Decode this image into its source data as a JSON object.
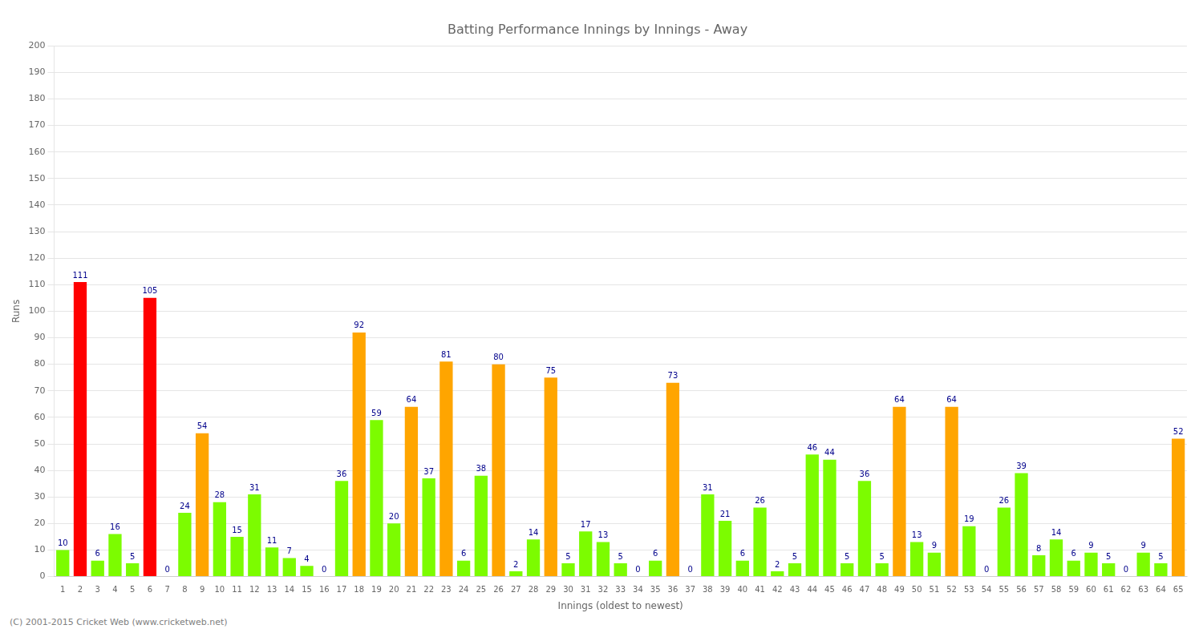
{
  "chart_data": {
    "type": "bar",
    "title": "Batting Performance Innings by Innings - Away",
    "xlabel": "Innings (oldest to newest)",
    "ylabel": "Runs",
    "categories": [
      "1",
      "2",
      "3",
      "4",
      "5",
      "6",
      "7",
      "8",
      "9",
      "10",
      "11",
      "12",
      "13",
      "14",
      "15",
      "16",
      "17",
      "18",
      "19",
      "20",
      "21",
      "22",
      "23",
      "24",
      "25",
      "26",
      "27",
      "28",
      "29",
      "30",
      "31",
      "32",
      "33",
      "34",
      "35",
      "36",
      "37",
      "38",
      "39",
      "40",
      "41",
      "42",
      "43",
      "44",
      "45",
      "46",
      "47",
      "48",
      "49",
      "50",
      "51",
      "52",
      "53",
      "54",
      "55",
      "56",
      "57",
      "58",
      "59",
      "60",
      "61",
      "62",
      "63",
      "64",
      "65"
    ],
    "values": [
      10,
      111,
      6,
      16,
      5,
      105,
      0,
      24,
      54,
      28,
      15,
      31,
      11,
      7,
      4,
      0,
      36,
      92,
      59,
      20,
      64,
      37,
      81,
      6,
      38,
      80,
      2,
      14,
      75,
      5,
      17,
      13,
      5,
      0,
      6,
      73,
      0,
      31,
      21,
      6,
      26,
      2,
      5,
      46,
      44,
      5,
      36,
      5,
      64,
      13,
      9,
      64,
      19,
      0,
      26,
      39,
      8,
      14,
      6,
      9,
      5,
      0,
      9,
      5,
      52
    ],
    "colors": [
      "#7cfc00",
      "#ff0000",
      "#7cfc00",
      "#7cfc00",
      "#7cfc00",
      "#ff0000",
      "#7cfc00",
      "#7cfc00",
      "#ffa500",
      "#7cfc00",
      "#7cfc00",
      "#7cfc00",
      "#7cfc00",
      "#7cfc00",
      "#7cfc00",
      "#7cfc00",
      "#7cfc00",
      "#ffa500",
      "#7cfc00",
      "#7cfc00",
      "#ffa500",
      "#7cfc00",
      "#ffa500",
      "#7cfc00",
      "#7cfc00",
      "#ffa500",
      "#7cfc00",
      "#7cfc00",
      "#ffa500",
      "#7cfc00",
      "#7cfc00",
      "#7cfc00",
      "#7cfc00",
      "#7cfc00",
      "#7cfc00",
      "#ffa500",
      "#7cfc00",
      "#7cfc00",
      "#7cfc00",
      "#7cfc00",
      "#7cfc00",
      "#7cfc00",
      "#7cfc00",
      "#7cfc00",
      "#7cfc00",
      "#7cfc00",
      "#7cfc00",
      "#7cfc00",
      "#ffa500",
      "#7cfc00",
      "#7cfc00",
      "#ffa500",
      "#7cfc00",
      "#7cfc00",
      "#7cfc00",
      "#7cfc00",
      "#7cfc00",
      "#7cfc00",
      "#7cfc00",
      "#7cfc00",
      "#7cfc00",
      "#7cfc00",
      "#7cfc00",
      "#7cfc00",
      "#ffa500"
    ],
    "ylim": [
      0,
      200
    ],
    "yticks": [
      0,
      10,
      20,
      30,
      40,
      50,
      60,
      70,
      80,
      90,
      100,
      110,
      120,
      130,
      140,
      150,
      160,
      170,
      180,
      190,
      200
    ],
    "grid": true,
    "data_labels": true,
    "annotations": [
      "(C) 2001-2015 Cricket Web (www.cricketweb.net)"
    ]
  }
}
